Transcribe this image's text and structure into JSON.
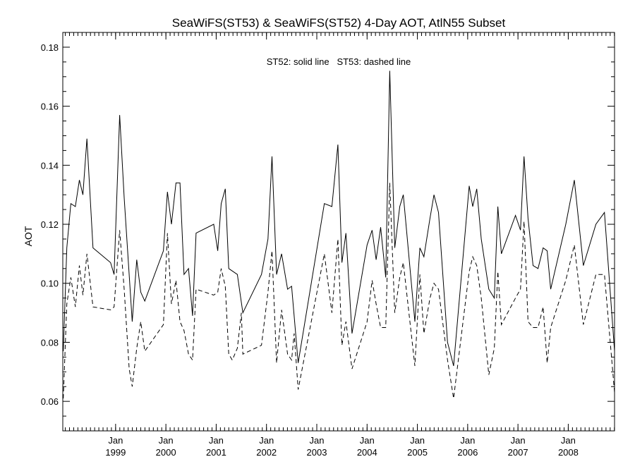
{
  "chart_data": {
    "type": "line",
    "title": "SeaWiFS(ST53) & SeaWiFS(ST52) 4-Day AOT, AtlN55 Subset",
    "annotation": "ST52: solid line   ST53: dashed line",
    "ylabel": "AOT",
    "xlabel": "",
    "ylim": [
      0.05,
      0.185
    ],
    "xlim": [
      1997.95,
      2008.92
    ],
    "y_ticks": [
      0.06,
      0.08,
      0.1,
      0.12,
      0.14,
      0.16,
      0.18
    ],
    "y_tick_labels": [
      "0.06",
      "0.08",
      "0.10",
      "0.12",
      "0.14",
      "0.16",
      "0.18"
    ],
    "x_ticks": [
      {
        "x": 1999.0,
        "month": "Jan",
        "year": "1999"
      },
      {
        "x": 2000.0,
        "month": "Jan",
        "year": "2000"
      },
      {
        "x": 2001.0,
        "month": "Jan",
        "year": "2001"
      },
      {
        "x": 2002.0,
        "month": "Jan",
        "year": "2002"
      },
      {
        "x": 2003.0,
        "month": "Jan",
        "year": "2003"
      },
      {
        "x": 2004.0,
        "month": "Jan",
        "year": "2004"
      },
      {
        "x": 2005.0,
        "month": "Jan",
        "year": "2005"
      },
      {
        "x": 2006.0,
        "month": "Jan",
        "year": "2006"
      },
      {
        "x": 2007.0,
        "month": "Jan",
        "year": "2007"
      },
      {
        "x": 2008.0,
        "month": "Jan",
        "year": "2008"
      }
    ],
    "series": [
      {
        "name": "ST52",
        "style": "solid",
        "color": "#000000",
        "points": [
          [
            1997.96,
            0.077
          ],
          [
            1998.03,
            0.112
          ],
          [
            1998.11,
            0.127
          ],
          [
            1998.2,
            0.126
          ],
          [
            1998.28,
            0.135
          ],
          [
            1998.35,
            0.13
          ],
          [
            1998.43,
            0.149
          ],
          [
            1998.55,
            0.112
          ],
          [
            1998.9,
            0.107
          ],
          [
            1998.97,
            0.103
          ],
          [
            1999.08,
            0.157
          ],
          [
            1999.17,
            0.129
          ],
          [
            1999.33,
            0.087
          ],
          [
            1999.42,
            0.108
          ],
          [
            1999.5,
            0.097
          ],
          [
            1999.58,
            0.094
          ],
          [
            1999.95,
            0.111
          ],
          [
            2000.03,
            0.131
          ],
          [
            2000.11,
            0.12
          ],
          [
            2000.2,
            0.134
          ],
          [
            2000.28,
            0.134
          ],
          [
            2000.36,
            0.103
          ],
          [
            2000.45,
            0.105
          ],
          [
            2000.53,
            0.089
          ],
          [
            2000.6,
            0.117
          ],
          [
            2000.95,
            0.12
          ],
          [
            2001.03,
            0.111
          ],
          [
            2001.1,
            0.127
          ],
          [
            2001.18,
            0.132
          ],
          [
            2001.25,
            0.105
          ],
          [
            2001.42,
            0.103
          ],
          [
            2001.53,
            0.09
          ],
          [
            2001.9,
            0.103
          ],
          [
            2002.03,
            0.115
          ],
          [
            2002.11,
            0.143
          ],
          [
            2002.2,
            0.103
          ],
          [
            2002.3,
            0.11
          ],
          [
            2002.42,
            0.098
          ],
          [
            2002.5,
            0.099
          ],
          [
            2002.63,
            0.073
          ],
          [
            2003.15,
            0.127
          ],
          [
            2003.3,
            0.126
          ],
          [
            2003.42,
            0.147
          ],
          [
            2003.5,
            0.107
          ],
          [
            2003.58,
            0.117
          ],
          [
            2003.7,
            0.083
          ],
          [
            2004.0,
            0.113
          ],
          [
            2004.1,
            0.118
          ],
          [
            2004.18,
            0.108
          ],
          [
            2004.27,
            0.119
          ],
          [
            2004.37,
            0.102
          ],
          [
            2004.45,
            0.172
          ],
          [
            2004.55,
            0.112
          ],
          [
            2004.65,
            0.126
          ],
          [
            2004.72,
            0.13
          ],
          [
            2004.95,
            0.087
          ],
          [
            2005.05,
            0.112
          ],
          [
            2005.13,
            0.109
          ],
          [
            2005.25,
            0.122
          ],
          [
            2005.33,
            0.13
          ],
          [
            2005.42,
            0.124
          ],
          [
            2005.6,
            0.08
          ],
          [
            2005.72,
            0.072
          ],
          [
            2006.03,
            0.133
          ],
          [
            2006.1,
            0.126
          ],
          [
            2006.18,
            0.132
          ],
          [
            2006.27,
            0.115
          ],
          [
            2006.42,
            0.098
          ],
          [
            2006.53,
            0.095
          ],
          [
            2006.6,
            0.126
          ],
          [
            2006.67,
            0.11
          ],
          [
            2006.95,
            0.123
          ],
          [
            2007.05,
            0.118
          ],
          [
            2007.12,
            0.143
          ],
          [
            2007.2,
            0.122
          ],
          [
            2007.3,
            0.106
          ],
          [
            2007.4,
            0.105
          ],
          [
            2007.5,
            0.112
          ],
          [
            2007.58,
            0.111
          ],
          [
            2007.65,
            0.098
          ],
          [
            2007.95,
            0.12
          ],
          [
            2008.12,
            0.135
          ],
          [
            2008.3,
            0.106
          ],
          [
            2008.55,
            0.12
          ],
          [
            2008.72,
            0.124
          ],
          [
            2008.92,
            0.077
          ]
        ]
      },
      {
        "name": "ST53",
        "style": "dashed",
        "color": "#000000",
        "points": [
          [
            1997.96,
            0.061
          ],
          [
            1998.03,
            0.093
          ],
          [
            1998.11,
            0.102
          ],
          [
            1998.2,
            0.092
          ],
          [
            1998.28,
            0.106
          ],
          [
            1998.35,
            0.096
          ],
          [
            1998.43,
            0.11
          ],
          [
            1998.55,
            0.092
          ],
          [
            1998.9,
            0.091
          ],
          [
            1998.97,
            0.092
          ],
          [
            1999.08,
            0.118
          ],
          [
            1999.17,
            0.098
          ],
          [
            1999.27,
            0.071
          ],
          [
            1999.33,
            0.065
          ],
          [
            1999.42,
            0.078
          ],
          [
            1999.5,
            0.087
          ],
          [
            1999.58,
            0.077
          ],
          [
            1999.95,
            0.086
          ],
          [
            2000.03,
            0.117
          ],
          [
            2000.11,
            0.093
          ],
          [
            2000.2,
            0.101
          ],
          [
            2000.28,
            0.087
          ],
          [
            2000.36,
            0.084
          ],
          [
            2000.45,
            0.076
          ],
          [
            2000.53,
            0.074
          ],
          [
            2000.6,
            0.098
          ],
          [
            2000.95,
            0.096
          ],
          [
            2001.03,
            0.097
          ],
          [
            2001.1,
            0.105
          ],
          [
            2001.18,
            0.099
          ],
          [
            2001.25,
            0.076
          ],
          [
            2001.32,
            0.074
          ],
          [
            2001.42,
            0.078
          ],
          [
            2001.5,
            0.09
          ],
          [
            2001.53,
            0.076
          ],
          [
            2001.9,
            0.079
          ],
          [
            2002.03,
            0.097
          ],
          [
            2002.11,
            0.111
          ],
          [
            2002.2,
            0.073
          ],
          [
            2002.3,
            0.091
          ],
          [
            2002.42,
            0.076
          ],
          [
            2002.5,
            0.074
          ],
          [
            2002.55,
            0.083
          ],
          [
            2002.63,
            0.064
          ],
          [
            2003.15,
            0.11
          ],
          [
            2003.3,
            0.09
          ],
          [
            2003.42,
            0.115
          ],
          [
            2003.5,
            0.079
          ],
          [
            2003.58,
            0.087
          ],
          [
            2003.7,
            0.071
          ],
          [
            2004.0,
            0.087
          ],
          [
            2004.1,
            0.101
          ],
          [
            2004.18,
            0.093
          ],
          [
            2004.27,
            0.085
          ],
          [
            2004.37,
            0.085
          ],
          [
            2004.45,
            0.134
          ],
          [
            2004.55,
            0.09
          ],
          [
            2004.65,
            0.102
          ],
          [
            2004.72,
            0.107
          ],
          [
            2004.95,
            0.072
          ],
          [
            2005.05,
            0.103
          ],
          [
            2005.13,
            0.083
          ],
          [
            2005.25,
            0.095
          ],
          [
            2005.33,
            0.1
          ],
          [
            2005.42,
            0.098
          ],
          [
            2005.6,
            0.074
          ],
          [
            2005.72,
            0.061
          ],
          [
            2006.03,
            0.104
          ],
          [
            2006.1,
            0.109
          ],
          [
            2006.18,
            0.106
          ],
          [
            2006.27,
            0.095
          ],
          [
            2006.42,
            0.069
          ],
          [
            2006.53,
            0.078
          ],
          [
            2006.6,
            0.104
          ],
          [
            2006.67,
            0.086
          ],
          [
            2006.95,
            0.095
          ],
          [
            2007.05,
            0.098
          ],
          [
            2007.12,
            0.121
          ],
          [
            2007.2,
            0.087
          ],
          [
            2007.3,
            0.085
          ],
          [
            2007.4,
            0.085
          ],
          [
            2007.5,
            0.092
          ],
          [
            2007.58,
            0.073
          ],
          [
            2007.65,
            0.085
          ],
          [
            2007.95,
            0.101
          ],
          [
            2008.12,
            0.113
          ],
          [
            2008.3,
            0.086
          ],
          [
            2008.55,
            0.103
          ],
          [
            2008.72,
            0.103
          ],
          [
            2008.92,
            0.063
          ]
        ]
      }
    ]
  }
}
